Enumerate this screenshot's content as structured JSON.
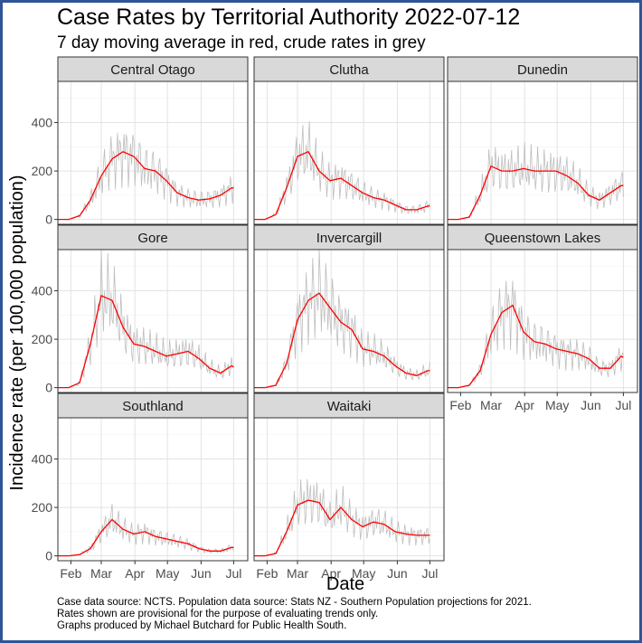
{
  "chart_data": {
    "type": "line",
    "title": "Case Rates by Territorial Authority 2022-07-12",
    "subtitle": "7 day moving average in red, crude rates in grey",
    "xlabel": "Date",
    "ylabel": "Incidence rate (per 100,000 population)",
    "x_ticks": [
      "Feb",
      "Mar",
      "Apr",
      "May",
      "Jun",
      "Jul"
    ],
    "y_ticks": [
      0,
      200,
      400
    ],
    "ylim": [
      -20,
      570
    ],
    "grid": true,
    "colors": {
      "moving_average": "#ff0000",
      "crude": "#bebebe"
    },
    "caption": [
      "Case data source: NCTS. Population data source: Stats NZ -  Southern Population projections for 2021.",
      "Rates shown are provisional for the purpose of evaluating trends only.",
      "Graphs produced by Michael Butchard for Public Health South."
    ],
    "x_days": [
      0,
      10,
      20,
      30,
      40,
      50,
      60,
      70,
      80,
      90,
      100,
      110,
      120,
      130,
      140,
      150,
      160,
      162
    ],
    "x_days_note_start": "2022-01-20",
    "panels": [
      {
        "name": "Central Otago",
        "moving_average": [
          0,
          0,
          15,
          80,
          180,
          250,
          280,
          260,
          210,
          200,
          160,
          110,
          90,
          80,
          85,
          100,
          130,
          130
        ]
      },
      {
        "name": "Clutha",
        "moving_average": [
          0,
          0,
          20,
          130,
          260,
          280,
          200,
          160,
          170,
          140,
          110,
          90,
          80,
          60,
          40,
          40,
          55,
          55
        ]
      },
      {
        "name": "Dunedin",
        "moving_average": [
          0,
          0,
          10,
          100,
          220,
          200,
          200,
          210,
          200,
          200,
          200,
          180,
          150,
          100,
          80,
          110,
          140,
          140
        ]
      },
      {
        "name": "Gore",
        "moving_average": [
          0,
          0,
          20,
          180,
          380,
          360,
          250,
          180,
          170,
          150,
          130,
          140,
          150,
          120,
          80,
          60,
          90,
          85
        ]
      },
      {
        "name": "Invercargill",
        "moving_average": [
          0,
          0,
          10,
          100,
          280,
          360,
          390,
          330,
          270,
          240,
          160,
          150,
          130,
          90,
          60,
          50,
          70,
          70
        ]
      },
      {
        "name": "Queenstown Lakes",
        "moving_average": [
          0,
          0,
          10,
          70,
          220,
          310,
          340,
          230,
          190,
          180,
          160,
          150,
          140,
          120,
          80,
          80,
          130,
          125
        ]
      },
      {
        "name": "Southland",
        "moving_average": [
          0,
          0,
          5,
          30,
          100,
          150,
          110,
          90,
          100,
          80,
          70,
          60,
          50,
          30,
          20,
          20,
          35,
          35
        ]
      },
      {
        "name": "Waitaki",
        "moving_average": [
          0,
          0,
          10,
          100,
          210,
          230,
          220,
          150,
          200,
          150,
          120,
          140,
          130,
          100,
          90,
          85,
          85,
          85
        ]
      }
    ]
  }
}
